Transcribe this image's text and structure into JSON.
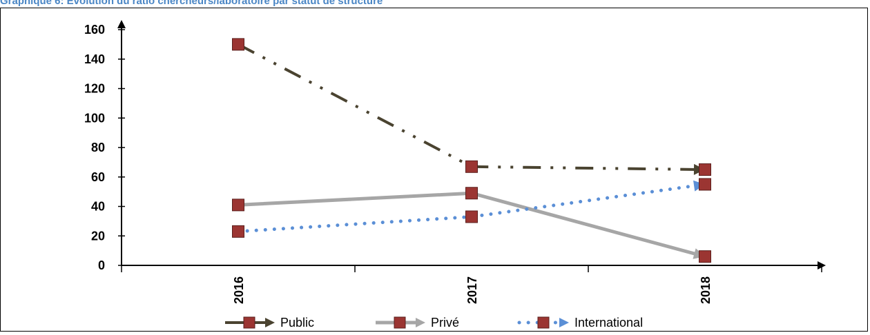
{
  "caption": "Graphique 6: Evolution du ratio chercheurs/laboratoire par statut de structure",
  "chart_data": {
    "type": "line",
    "title": "",
    "xlabel": "",
    "ylabel": "",
    "categories": [
      "2016",
      "2017",
      "2018"
    ],
    "ylim": [
      0,
      160
    ],
    "yticks": [
      0,
      20,
      40,
      60,
      80,
      100,
      120,
      140,
      160
    ],
    "grid": false,
    "legend_position": "bottom",
    "series": [
      {
        "name": "Public",
        "values": [
          150,
          67,
          65
        ],
        "color": "#4a4330",
        "style": "dash-dot-dot"
      },
      {
        "name": "Privé",
        "values": [
          41,
          49,
          6
        ],
        "color": "#a6a6a6",
        "style": "solid"
      },
      {
        "name": "International",
        "values": [
          23,
          33,
          55
        ],
        "color": "#5b8fd6",
        "style": "dotted"
      }
    ],
    "marker_color": "#9b3532"
  }
}
